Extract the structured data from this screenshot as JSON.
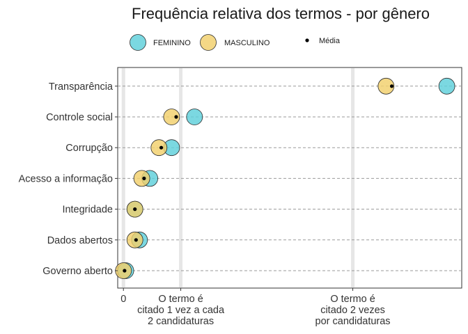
{
  "chart_data": {
    "type": "scatter",
    "title": "Frequência relativa dos termos - por gênero",
    "xlabel": "",
    "ylabel": "",
    "xlim": [
      -0.025,
      1.475
    ],
    "categories": [
      "Governo aberto",
      "Dados abertos",
      "Integridade",
      "Acesso a informação",
      "Corrupção",
      "Controle social",
      "Transparência"
    ],
    "x_ticks": [
      {
        "value": 0,
        "label": "0"
      },
      {
        "value": 0.25,
        "label": "O termo é|citado 1 vez a cada|2 candidaturas"
      },
      {
        "value": 1.0,
        "label": "O termo é|citado 2 vezes|por candidaturas"
      }
    ],
    "grid": {
      "vertical_lines_at": [
        0,
        0.25,
        1.0
      ],
      "horizontal_dashed": true
    },
    "legend": {
      "placement": "top",
      "items": [
        {
          "label": "FEMININO",
          "color": "#5ecfdb"
        },
        {
          "label": "MASCULINO",
          "color": "#f2d06b"
        },
        {
          "label": "Média",
          "color": "#000000"
        }
      ]
    },
    "series": [
      {
        "name": "FEMININO",
        "color": "#5ecfdb",
        "values": [
          0.01,
          0.07,
          0.05,
          0.115,
          0.21,
          0.31,
          1.41
        ]
      },
      {
        "name": "MASCULINO",
        "color": "#f2d06b",
        "values": [
          0.0,
          0.05,
          0.05,
          0.08,
          0.155,
          0.21,
          1.145
        ]
      },
      {
        "name": "Média",
        "color": "#000000",
        "values": [
          0.005,
          0.055,
          0.05,
          0.09,
          0.165,
          0.23,
          1.17
        ]
      }
    ]
  }
}
